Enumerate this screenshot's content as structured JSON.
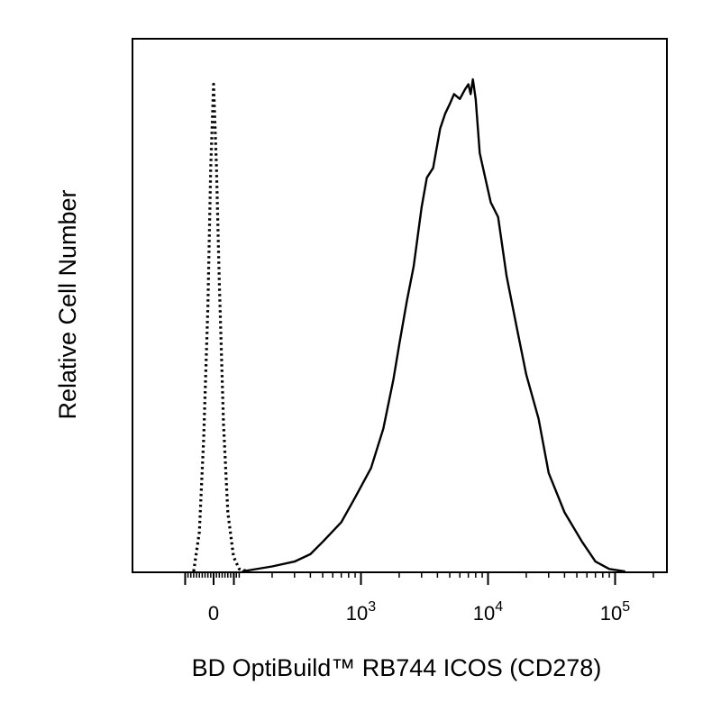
{
  "chart_data": {
    "type": "line",
    "title": "",
    "xlabel": "BD OptiBuild™ RB744 ICOS (CD278)",
    "ylabel": "Relative Cell Number",
    "x_scale": "biexponential",
    "xlim": [
      -100,
      150000
    ],
    "ylim": [
      0,
      1.0
    ],
    "grid": false,
    "x_tick_labels": [
      {
        "value": 0,
        "base": "0",
        "exp": ""
      },
      {
        "value": 1000,
        "base": "10",
        "exp": "3"
      },
      {
        "value": 10000,
        "base": "10",
        "exp": "4"
      },
      {
        "value": 100000,
        "base": "10",
        "exp": "5"
      }
    ],
    "series": [
      {
        "style": "dotted",
        "x": [
          -70,
          -50,
          -35,
          -20,
          -10,
          0,
          10,
          20,
          35,
          50,
          70,
          90,
          120
        ],
        "y": [
          0.0,
          0.08,
          0.27,
          0.54,
          0.82,
          0.99,
          0.82,
          0.59,
          0.3,
          0.12,
          0.03,
          0.005,
          0.0
        ]
      },
      {
        "style": "solid",
        "x": [
          100,
          200,
          300,
          400,
          500,
          700,
          900,
          1200,
          1500,
          1800,
          2000,
          2300,
          2600,
          3000,
          3300,
          3700,
          4200,
          4600,
          5000,
          5400,
          6000,
          6600,
          7000,
          7300,
          7600,
          8000,
          8600,
          9500,
          10500,
          12000,
          14000,
          17000,
          20000,
          25000,
          30000,
          40000,
          55000,
          70000,
          90000,
          120000
        ],
        "y": [
          0.0,
          0.01,
          0.02,
          0.035,
          0.06,
          0.1,
          0.15,
          0.21,
          0.29,
          0.39,
          0.46,
          0.55,
          0.62,
          0.74,
          0.8,
          0.82,
          0.9,
          0.93,
          0.95,
          0.97,
          0.96,
          0.98,
          0.99,
          0.97,
          1.0,
          0.96,
          0.85,
          0.8,
          0.75,
          0.72,
          0.6,
          0.49,
          0.4,
          0.31,
          0.2,
          0.12,
          0.06,
          0.02,
          0.005,
          0.0
        ]
      }
    ]
  }
}
